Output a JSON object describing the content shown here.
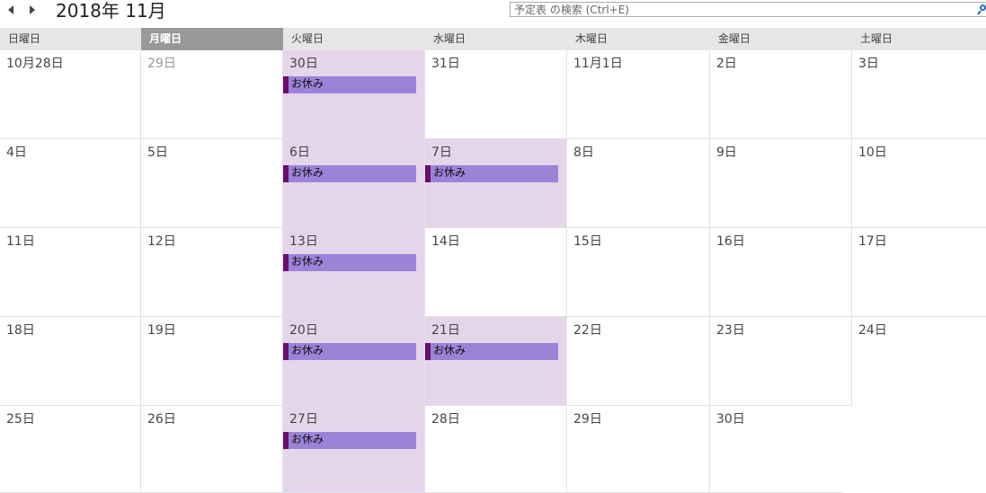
{
  "header": {
    "month_title": "2018年 11月",
    "search_placeholder": "予定表 の検索 (Ctrl+E)"
  },
  "weekdays": [
    {
      "label": "日曜日",
      "selected": false
    },
    {
      "label": "月曜日",
      "selected": true
    },
    {
      "label": "火曜日",
      "selected": false
    },
    {
      "label": "水曜日",
      "selected": false
    },
    {
      "label": "木曜日",
      "selected": false
    },
    {
      "label": "金曜日",
      "selected": false
    },
    {
      "label": "土曜日",
      "selected": false
    }
  ],
  "weeks": [
    [
      {
        "date": "10月28日"
      },
      {
        "date": "29日",
        "muted": true
      },
      {
        "date": "30日",
        "event": "お休み"
      },
      {
        "date": "31日"
      },
      {
        "date": "11月1日"
      },
      {
        "date": "2日"
      },
      {
        "date": "3日"
      }
    ],
    [
      {
        "date": "4日"
      },
      {
        "date": "5日"
      },
      {
        "date": "6日",
        "event": "お休み"
      },
      {
        "date": "7日",
        "event": "お休み"
      },
      {
        "date": "8日"
      },
      {
        "date": "9日"
      },
      {
        "date": "10日"
      }
    ],
    [
      {
        "date": "11日"
      },
      {
        "date": "12日"
      },
      {
        "date": "13日",
        "event": "お休み"
      },
      {
        "date": "14日"
      },
      {
        "date": "15日"
      },
      {
        "date": "16日"
      },
      {
        "date": "17日"
      }
    ],
    [
      {
        "date": "18日"
      },
      {
        "date": "19日"
      },
      {
        "date": "20日",
        "event": "お休み"
      },
      {
        "date": "21日",
        "event": "お休み"
      },
      {
        "date": "22日"
      },
      {
        "date": "23日"
      },
      {
        "date": "24日"
      }
    ],
    [
      {
        "date": "25日"
      },
      {
        "date": "26日"
      },
      {
        "date": "27日",
        "event": "お休み"
      },
      {
        "date": "28日"
      },
      {
        "date": "29日"
      },
      {
        "date": "30日"
      },
      {
        "date": ""
      }
    ]
  ],
  "colors": {
    "event_fill": "#9d83d8",
    "event_bar": "#6a0d6e",
    "busy_cell": "#e5d5ea",
    "selected_header": "#999999"
  }
}
